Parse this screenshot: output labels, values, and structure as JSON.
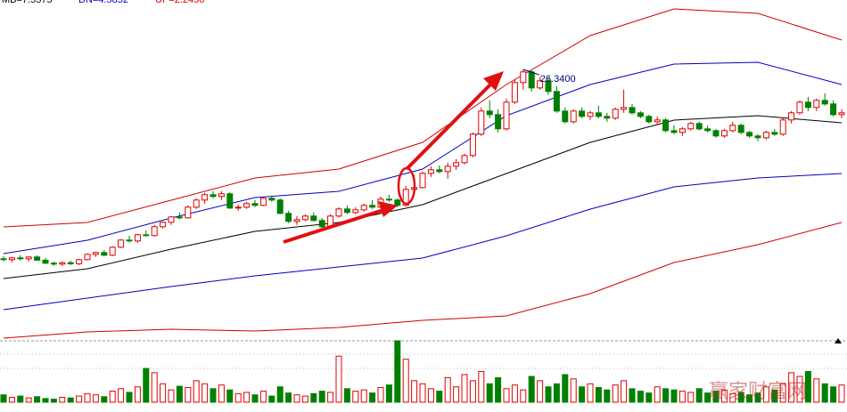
{
  "chart_data": {
    "type": "candlestick",
    "indicator_labels": [
      {
        "text": "MB=7.5575",
        "color": "#000000"
      },
      {
        "text": "DN=4.5852",
        "color": "#0000c0"
      },
      {
        "text": "UP=2.2450",
        "color": "#d00000"
      }
    ],
    "annotations": [
      {
        "text": "26.3400",
        "index": 62
      }
    ],
    "watermark": "赢家财富网",
    "up_color": "#e00000",
    "down_color": "#008000",
    "ylim": [
      11.24,
      30.24
    ],
    "vlim": [
      0,
      100
    ],
    "open": [
      15.7,
      15.65,
      15.75,
      15.7,
      15.8,
      15.62,
      15.45,
      15.4,
      15.48,
      15.42,
      15.65,
      15.95,
      16.05,
      15.9,
      16.35,
      16.75,
      16.7,
      17.05,
      17.0,
      17.5,
      17.75,
      18.05,
      18.0,
      18.6,
      19.0,
      19.3,
      19.2,
      19.35,
      18.55,
      18.6,
      18.8,
      18.7,
      19.1,
      19.0,
      18.25,
      17.8,
      17.9,
      18.1,
      17.85,
      17.5,
      18.1,
      18.5,
      18.3,
      18.45,
      18.7,
      18.6,
      19.05,
      19.0,
      18.7,
      19.6,
      19.7,
      20.5,
      20.7,
      20.6,
      20.9,
      21.1,
      21.5,
      22.7,
      24.0,
      23.8,
      23.0,
      24.5,
      25.6,
      26.2,
      25.3,
      25.7,
      25.1,
      24.0,
      23.4,
      24.0,
      23.7,
      23.9,
      23.7,
      23.6,
      24.1,
      24.2,
      23.9,
      23.7,
      23.4,
      23.5,
      22.9,
      22.8,
      23.0,
      23.3,
      23.0,
      22.9,
      22.6,
      22.9,
      23.2,
      22.8,
      22.6,
      22.5,
      22.8,
      22.7,
      23.5,
      23.9,
      24.5,
      24.2,
      24.6,
      24.4,
      23.8
    ],
    "high": [
      15.85,
      15.8,
      15.9,
      15.85,
      15.9,
      15.75,
      15.55,
      15.55,
      15.6,
      15.7,
      16.0,
      16.1,
      16.2,
      16.4,
      16.8,
      17.0,
      17.1,
      17.3,
      17.6,
      17.8,
      18.1,
      18.3,
      18.7,
      19.1,
      19.4,
      19.5,
      19.5,
      19.45,
      18.75,
      18.9,
      19.0,
      19.2,
      19.25,
      19.1,
      18.4,
      18.1,
      18.2,
      18.3,
      18.0,
      18.2,
      18.6,
      18.7,
      18.6,
      18.8,
      19.0,
      19.2,
      19.3,
      19.1,
      19.8,
      20.4,
      20.6,
      20.9,
      20.95,
      21.1,
      21.3,
      21.6,
      22.8,
      24.2,
      24.6,
      24.1,
      24.7,
      25.8,
      26.34,
      26.3,
      25.9,
      25.9,
      25.4,
      24.2,
      24.1,
      24.2,
      24.0,
      24.3,
      23.9,
      24.2,
      25.2,
      24.4,
      24.0,
      23.8,
      23.7,
      23.6,
      23.2,
      23.1,
      23.4,
      23.4,
      23.2,
      23.0,
      23.0,
      23.4,
      23.3,
      22.9,
      22.7,
      22.9,
      23.0,
      23.6,
      24.0,
      24.6,
      24.8,
      24.7,
      25.0,
      24.6,
      24.1
    ],
    "low": [
      15.55,
      15.5,
      15.6,
      15.55,
      15.6,
      15.4,
      15.3,
      15.3,
      15.35,
      15.35,
      15.6,
      15.8,
      15.85,
      15.85,
      16.3,
      16.6,
      16.6,
      16.95,
      16.95,
      17.4,
      17.6,
      17.9,
      17.95,
      18.5,
      18.8,
      19.1,
      19.0,
      18.5,
      18.4,
      18.5,
      18.6,
      18.65,
      18.9,
      18.2,
      17.7,
      17.6,
      17.8,
      17.8,
      17.4,
      17.45,
      18.0,
      18.2,
      18.2,
      18.35,
      18.5,
      18.55,
      18.9,
      18.6,
      18.65,
      19.3,
      19.65,
      20.3,
      20.5,
      20.2,
      20.7,
      21.0,
      21.4,
      22.6,
      23.6,
      22.8,
      22.9,
      24.4,
      25.2,
      25.1,
      25.2,
      24.9,
      23.9,
      23.3,
      23.3,
      23.6,
      23.5,
      23.6,
      23.4,
      23.5,
      23.9,
      23.8,
      23.6,
      23.3,
      23.2,
      22.8,
      22.7,
      22.6,
      22.9,
      22.9,
      22.8,
      22.5,
      22.5,
      22.8,
      22.7,
      22.5,
      22.3,
      22.4,
      22.6,
      22.6,
      23.3,
      23.8,
      24.0,
      24.0,
      24.3,
      23.7,
      23.6
    ],
    "close": [
      15.65,
      15.75,
      15.7,
      15.8,
      15.62,
      15.45,
      15.4,
      15.48,
      15.42,
      15.65,
      15.95,
      16.05,
      15.9,
      16.35,
      16.75,
      16.7,
      17.05,
      17.0,
      17.5,
      17.75,
      18.05,
      18.0,
      18.6,
      19.0,
      19.3,
      19.2,
      19.35,
      18.55,
      18.6,
      18.8,
      18.7,
      19.1,
      19.0,
      18.25,
      17.8,
      17.9,
      18.1,
      17.85,
      17.5,
      18.1,
      18.5,
      18.3,
      18.45,
      18.7,
      18.6,
      19.05,
      19.0,
      18.7,
      19.6,
      19.7,
      20.5,
      20.7,
      20.6,
      20.9,
      21.1,
      21.5,
      22.7,
      24.0,
      23.8,
      23.0,
      24.5,
      25.6,
      26.2,
      25.3,
      25.7,
      25.1,
      24.0,
      23.4,
      24.0,
      23.7,
      23.9,
      23.7,
      23.6,
      24.1,
      24.2,
      23.9,
      23.7,
      23.4,
      23.5,
      22.9,
      22.8,
      23.0,
      23.3,
      23.0,
      22.9,
      22.6,
      22.9,
      23.2,
      22.8,
      22.6,
      22.5,
      22.8,
      22.7,
      23.5,
      23.9,
      24.5,
      24.2,
      24.6,
      24.4,
      23.8,
      23.9
    ],
    "volume": [
      12,
      8,
      10,
      7,
      9,
      6,
      5,
      8,
      7,
      10,
      14,
      12,
      9,
      18,
      22,
      16,
      25,
      55,
      48,
      30,
      20,
      26,
      24,
      35,
      30,
      22,
      28,
      20,
      14,
      16,
      12,
      18,
      10,
      25,
      15,
      12,
      10,
      14,
      18,
      16,
      75,
      22,
      18,
      20,
      15,
      24,
      28,
      100,
      70,
      35,
      30,
      22,
      18,
      40,
      25,
      45,
      35,
      50,
      30,
      40,
      22,
      28,
      20,
      42,
      35,
      25,
      30,
      45,
      38,
      25,
      30,
      24,
      20,
      28,
      35,
      22,
      18,
      15,
      25,
      22,
      20,
      18,
      16,
      22,
      15,
      18,
      20,
      14,
      16,
      12,
      15,
      25,
      20,
      30,
      48,
      42,
      50,
      38,
      30,
      25,
      28
    ],
    "band_x": [
      0,
      10,
      20,
      30,
      40,
      50,
      60,
      70,
      80,
      90,
      100
    ],
    "bands": [
      {
        "color": "#d00000",
        "values": [
          17.49,
          17.74,
          18.99,
          20.24,
          20.74,
          22.24,
          25.49,
          28.24,
          29.74,
          29.49,
          27.99
        ]
      },
      {
        "color": "#0000c0",
        "values": [
          15.99,
          16.74,
          17.99,
          19.14,
          19.49,
          20.74,
          23.74,
          25.49,
          26.64,
          26.74,
          25.49
        ]
      },
      {
        "color": "#000000",
        "values": [
          14.59,
          15.14,
          16.24,
          17.24,
          17.74,
          18.74,
          20.49,
          22.24,
          23.49,
          23.74,
          23.34
        ]
      },
      {
        "color": "#0000c0",
        "values": [
          12.84,
          13.49,
          14.14,
          14.74,
          15.24,
          15.74,
          16.99,
          18.49,
          19.74,
          20.24,
          20.49
        ]
      },
      {
        "color": "#d00000",
        "values": [
          11.24,
          11.59,
          11.74,
          11.64,
          11.84,
          12.24,
          12.49,
          13.74,
          15.49,
          16.49,
          17.74
        ]
      }
    ]
  }
}
